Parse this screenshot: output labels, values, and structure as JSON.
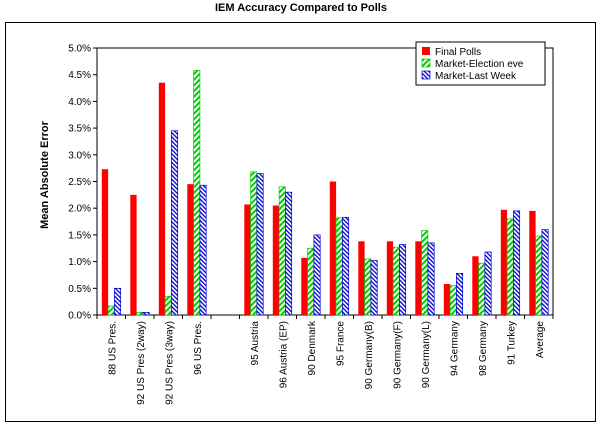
{
  "chart_data": {
    "type": "bar",
    "title": "IEM Accuracy Compared to Polls",
    "xlabel": "",
    "ylabel": "Mean Absolute Error",
    "ylim": [
      0,
      0.05
    ],
    "ytick_step": 0.005,
    "ytick_labels": [
      "0.0%",
      "0.5%",
      "1.0%",
      "1.5%",
      "2.0%",
      "2.5%",
      "3.0%",
      "3.5%",
      "4.0%",
      "4.5%",
      "5.0%"
    ],
    "grid": false,
    "legend_position": "top-right",
    "categories": [
      "88 US Pres.",
      "92 US Pres (2way)",
      "92 US Pres (3way)",
      "96 US Pres.",
      "",
      "95 Austria",
      "96 Austria (EP)",
      "90 Denmark",
      "95 France",
      "90 Germany(B)",
      "90 Germany(F)",
      "90 Germany(L)",
      "94 Germany",
      "98 Germany",
      "91 Turkey",
      "Average"
    ],
    "series": [
      {
        "name": "Final Polls",
        "color": "#ff0000",
        "values": [
          0.0273,
          0.0225,
          0.0435,
          0.0245,
          null,
          0.0207,
          0.0205,
          0.0107,
          0.025,
          0.0138,
          0.0138,
          0.0138,
          0.0058,
          0.011,
          0.0197,
          0.0195
        ]
      },
      {
        "name": "Market-Election eve",
        "color": "#00cc00",
        "values": [
          0.0017,
          0.0005,
          0.0035,
          0.0458,
          null,
          0.0268,
          0.024,
          0.0125,
          0.0182,
          0.0105,
          0.0127,
          0.0158,
          0.0055,
          0.0097,
          0.018,
          0.0148
        ]
      },
      {
        "name": "Market-Last Week",
        "color": "#0000cc",
        "values": [
          0.005,
          0.0005,
          0.0345,
          0.0243,
          null,
          0.0265,
          0.023,
          0.015,
          0.0183,
          0.0102,
          0.0132,
          0.0135,
          0.0078,
          0.0118,
          0.0195,
          0.016
        ]
      }
    ]
  }
}
